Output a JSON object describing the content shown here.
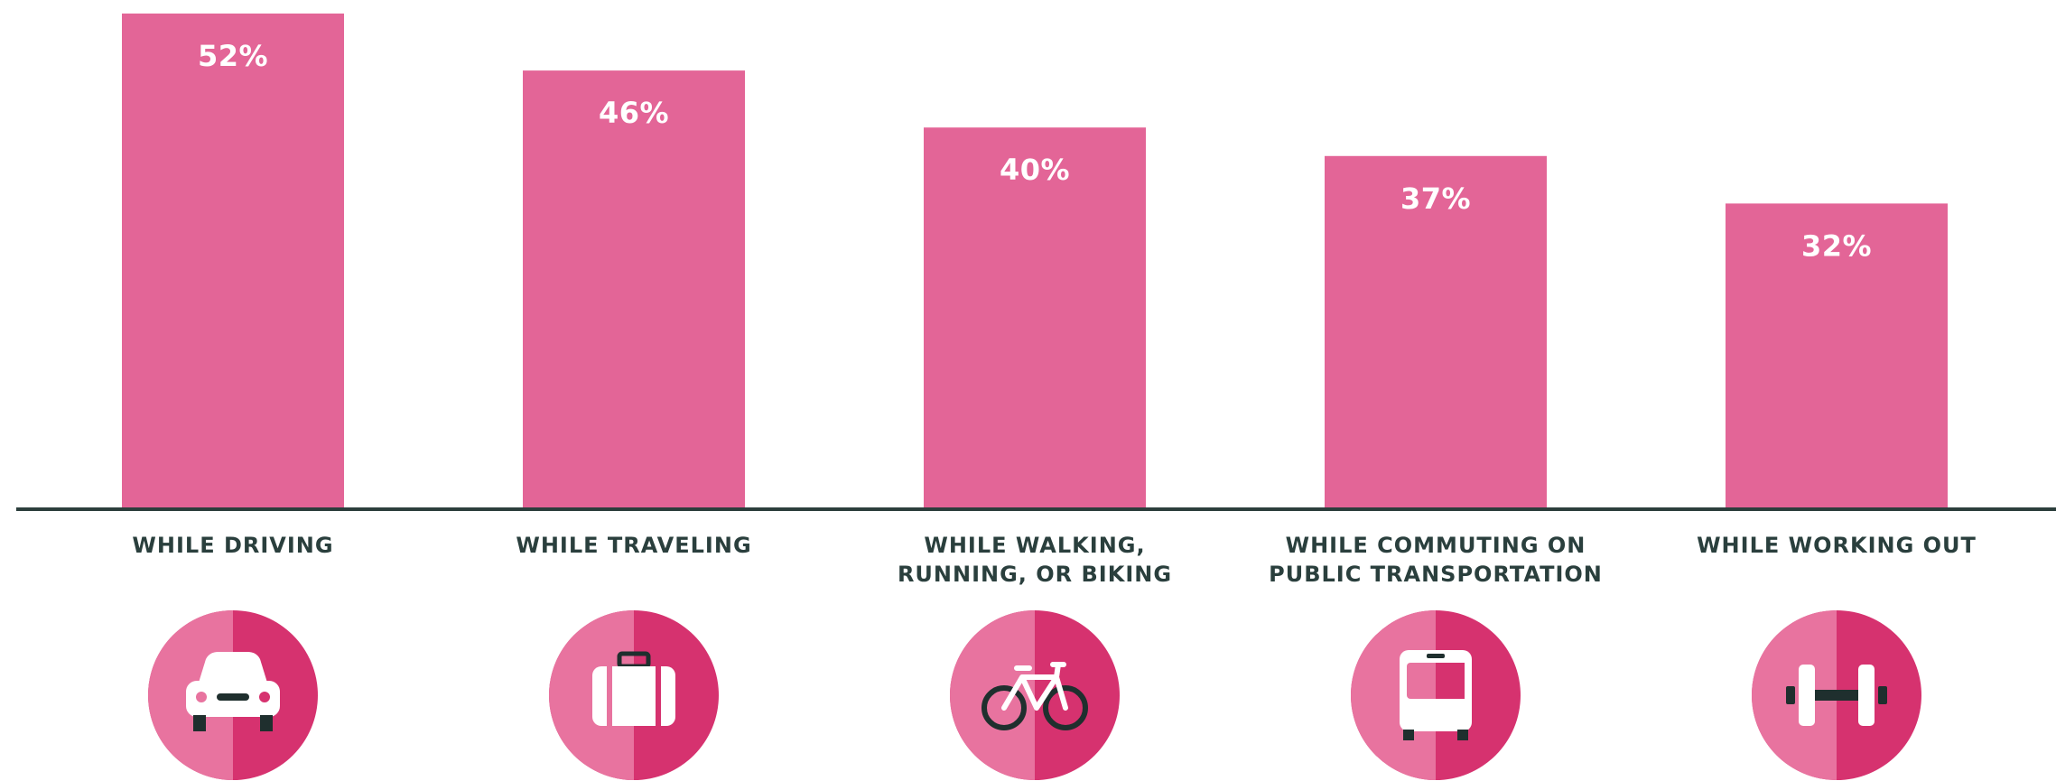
{
  "chart_data": {
    "type": "bar",
    "title": "",
    "xlabel": "",
    "ylabel": "",
    "ylim": [
      0,
      52
    ],
    "grid": false,
    "categories": [
      [
        "WHILE DRIVING"
      ],
      [
        "WHILE TRAVELING"
      ],
      [
        "WHILE WALKING,",
        "RUNNING, OR BIKING"
      ],
      [
        "WHILE COMMUTING ON",
        "PUBLIC TRANSPORTATION"
      ],
      [
        "WHILE WORKING OUT"
      ]
    ],
    "values": [
      52,
      46,
      40,
      37,
      32
    ],
    "value_labels": [
      "52%",
      "46%",
      "40%",
      "37%",
      "32%"
    ],
    "icons": [
      "car-icon",
      "suitcase-icon",
      "bicycle-icon",
      "bus-icon",
      "dumbbell-icon"
    ]
  },
  "colors": {
    "bar": "#e36597",
    "axis": "#2c3e3c",
    "label": "#2a3f3d",
    "icon_light": "#e8739f",
    "icon_dark": "#d6326f",
    "icon_glyph": "#ffffff",
    "icon_detail": "#1f2f2e"
  }
}
